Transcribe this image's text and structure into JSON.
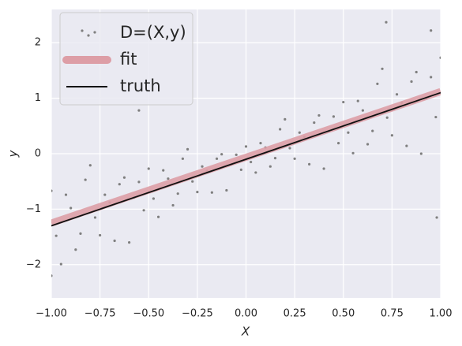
{
  "chart_data": {
    "type": "scatter",
    "xlabel": "X",
    "ylabel": "y",
    "xlim": [
      -1,
      1
    ],
    "ylim": [
      -2.6,
      2.6
    ],
    "xticks": [
      {
        "value": -1,
        "label": "−1.00"
      },
      {
        "value": -0.75,
        "label": "−0.75"
      },
      {
        "value": -0.5,
        "label": "−0.50"
      },
      {
        "value": -0.25,
        "label": "−0.25"
      },
      {
        "value": 0,
        "label": "0.00"
      },
      {
        "value": 0.25,
        "label": "0.25"
      },
      {
        "value": 0.5,
        "label": "0.50"
      },
      {
        "value": 0.75,
        "label": "0.75"
      },
      {
        "value": 1,
        "label": "1.00"
      }
    ],
    "yticks": [
      {
        "value": -2,
        "label": "−2"
      },
      {
        "value": -1,
        "label": "−1"
      },
      0,
      1,
      2
    ],
    "grid": true,
    "legend": "upper left",
    "series": [
      {
        "name": "D=(X,y)",
        "type": "scatter",
        "color": "#7f7f7f",
        "x": [
          -1,
          -0.95,
          -0.9,
          -0.85,
          -0.8,
          -0.75,
          -0.7,
          -0.65,
          -0.6,
          -0.55,
          -0.5,
          -0.45,
          -0.4,
          -0.35,
          -0.3,
          -0.25,
          -0.2,
          -0.15,
          -0.1,
          -0.05,
          0,
          0.05,
          0.1,
          0.15,
          0.2,
          0.25,
          0.3,
          0.35,
          0.4,
          0.45,
          0.5,
          0.55,
          0.6,
          0.65,
          0.7,
          0.75,
          0.8,
          0.85,
          0.9,
          0.95,
          1,
          -0.975,
          -0.925,
          -0.875,
          -0.825,
          -0.775,
          -0.725,
          -0.675,
          -0.625,
          -0.575,
          -0.525,
          -0.475,
          -0.425,
          -0.375,
          -0.325,
          -0.275,
          -0.225,
          -0.175,
          -0.125,
          -0.075,
          -0.025,
          0.025,
          0.075,
          0.125,
          0.175,
          0.225,
          0.275,
          0.325,
          0.375,
          0.425,
          0.475,
          0.525,
          0.575,
          0.625,
          0.675,
          0.725,
          0.775,
          0.825,
          0.875,
          0.925,
          0.975,
          0.72,
          0.95,
          0.98,
          -1,
          -0.55
        ],
        "values": [
          -0.67,
          -1.99,
          -0.98,
          -1.44,
          -0.21,
          -1.47,
          -0.88,
          -0.55,
          -1.6,
          -0.51,
          -0.27,
          -1.14,
          -0.45,
          -0.72,
          0.08,
          -0.69,
          -0.31,
          -0.09,
          -0.66,
          -0.02,
          0.13,
          -0.34,
          0.11,
          -0.08,
          0.62,
          -0.09,
          0.3,
          0.56,
          -0.27,
          0.67,
          0.93,
          0.01,
          0.78,
          0.41,
          1.53,
          0.33,
          0.92,
          1.3,
          0,
          1.38,
          1.73,
          -1.48,
          -0.74,
          -1.73,
          -0.47,
          -1.15,
          -0.74,
          -1.57,
          -0.43,
          -0.79,
          -1.02,
          -0.81,
          -0.3,
          -0.93,
          -0.09,
          -0.5,
          -0.23,
          -0.7,
          -0.01,
          -0.19,
          -0.29,
          -0.15,
          0.19,
          -0.23,
          0.44,
          0.1,
          0.38,
          -0.19,
          0.69,
          0.41,
          0.19,
          0.38,
          0.95,
          0.17,
          1.26,
          0.65,
          1.07,
          0.14,
          1.47,
          1.01,
          0.66,
          2.37,
          2.22,
          -1.15,
          -2.2,
          0.78
        ]
      },
      {
        "name": "fit",
        "type": "line",
        "color": "#dd9ea6",
        "x": [
          -1,
          1
        ],
        "values": [
          -1.25,
          1.12
        ]
      },
      {
        "name": "truth",
        "type": "line",
        "color": "#111111",
        "x": [
          -1,
          1
        ],
        "values": [
          -1.3,
          1.1
        ]
      }
    ]
  }
}
